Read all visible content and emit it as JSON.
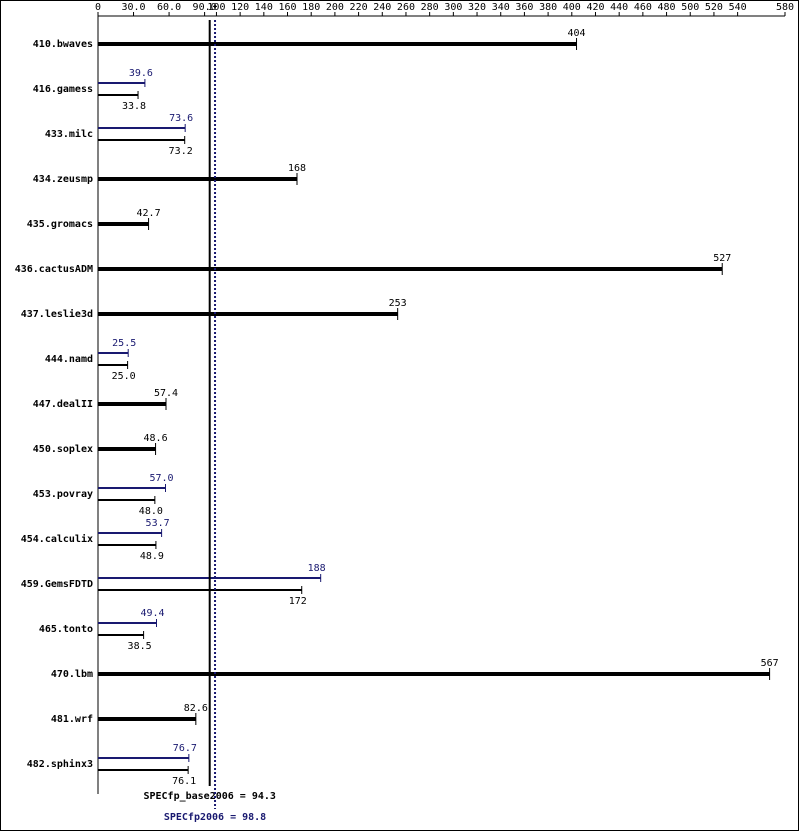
{
  "chart_data": {
    "type": "bar",
    "orientation": "horizontal",
    "categories": [
      "410.bwaves",
      "416.gamess",
      "433.milc",
      "434.zeusmp",
      "435.gromacs",
      "436.cactusADM",
      "437.leslie3d",
      "444.namd",
      "447.dealII",
      "450.soplex",
      "453.povray",
      "454.calculix",
      "459.GemsFDTD",
      "465.tonto",
      "470.lbm",
      "481.wrf",
      "482.sphinx3"
    ],
    "series": [
      {
        "color": "#000000",
        "values": [
          404,
          33.8,
          73.2,
          168,
          42.7,
          527,
          253,
          25.0,
          57.4,
          48.6,
          48.0,
          48.9,
          172,
          38.5,
          567,
          82.6,
          76.1
        ],
        "value_labels": [
          "404",
          "33.8",
          "73.2",
          "168",
          "42.7",
          "527",
          "253",
          "25.0",
          "57.4",
          "48.6",
          "48.0",
          "48.9",
          "172",
          "38.5",
          "567",
          "82.6",
          "76.1"
        ]
      },
      {
        "color": "#191970",
        "values": [
          null,
          39.6,
          73.6,
          null,
          null,
          null,
          null,
          25.5,
          null,
          null,
          57.0,
          53.7,
          188,
          49.4,
          null,
          null,
          76.7
        ],
        "value_labels": [
          null,
          "39.6",
          "73.6",
          null,
          null,
          null,
          null,
          "25.5",
          null,
          null,
          "57.0",
          "53.7",
          "188",
          "49.4",
          null,
          null,
          "76.7"
        ]
      }
    ],
    "xlim": [
      0,
      580
    ],
    "xticks": [
      0,
      {
        "value": 30,
        "label": "30.0"
      },
      {
        "value": 60,
        "label": "60.0"
      },
      {
        "value": 90,
        "label": "90.0"
      },
      100,
      120,
      140,
      160,
      180,
      200,
      220,
      240,
      260,
      280,
      300,
      320,
      340,
      360,
      380,
      400,
      420,
      440,
      460,
      480,
      500,
      520,
      540,
      580
    ],
    "reference_lines": [
      {
        "label": "SPECfp_base2006 = 94.3",
        "value": 94.3,
        "color": "#000000",
        "style": "solid"
      },
      {
        "label": "SPECfp2006 = 98.8",
        "value": 98.8,
        "color": "#191970",
        "style": "dotted"
      }
    ]
  }
}
